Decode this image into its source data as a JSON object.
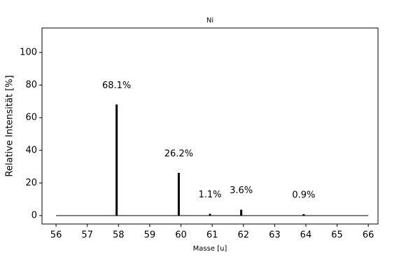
{
  "chart_data": {
    "type": "bar",
    "title": "Ni",
    "x_label": "Masse [u]",
    "y_label": "Relative Intensität [%]",
    "x": [
      57.94,
      59.93,
      60.93,
      61.93,
      63.93
    ],
    "values": [
      68.1,
      26.2,
      1.1,
      3.6,
      0.9
    ],
    "value_labels": [
      "68.1%",
      "26.2%",
      "1.1%",
      "3.6%",
      "0.9%"
    ],
    "color": "#000000",
    "xlim": [
      55.55,
      66.31
    ],
    "xticks": [
      56,
      57,
      58,
      59,
      60,
      61,
      62,
      63,
      64,
      65,
      66
    ],
    "ylim": [
      -5.15,
      115
    ],
    "yticks": [
      0,
      20,
      40,
      60,
      80,
      100
    ],
    "grid": false
  }
}
